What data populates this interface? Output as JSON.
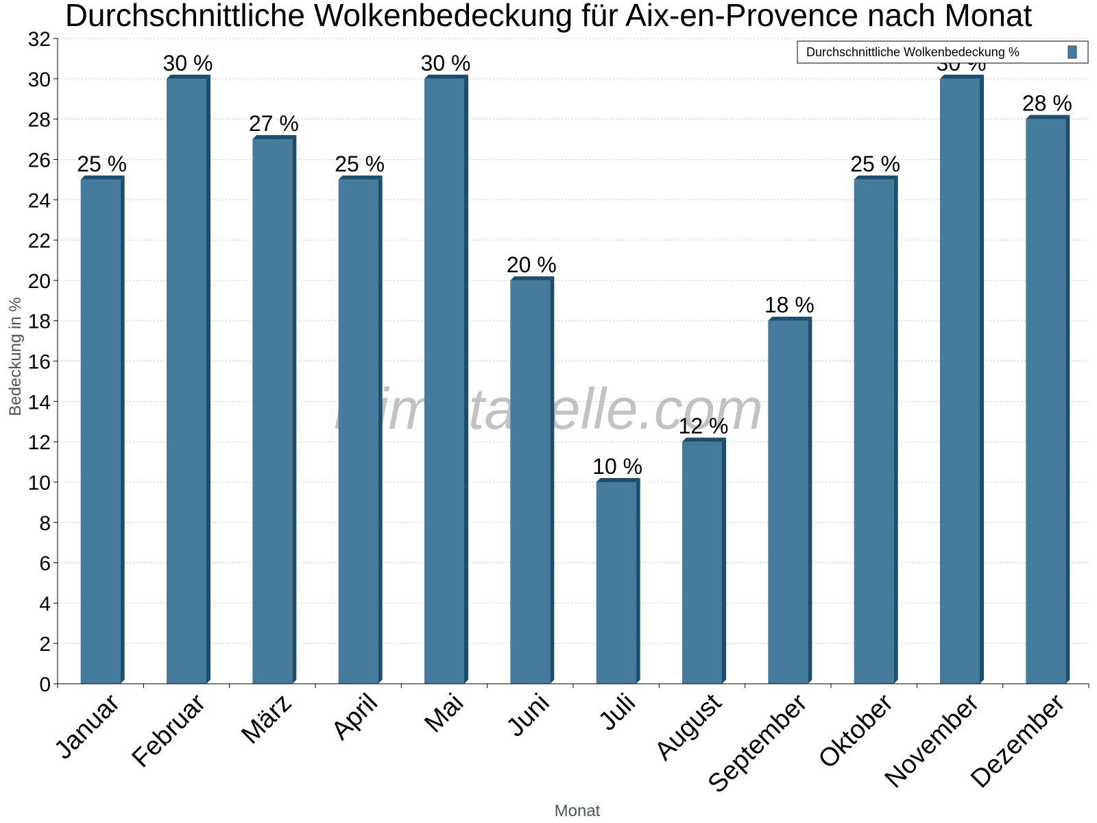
{
  "chart_data": {
    "type": "bar",
    "title": "Durchschnittliche Wolkenbedeckung für Aix-en-Provence nach Monat",
    "xlabel": "Monat",
    "ylabel": "Bedeckung in %",
    "categories": [
      "Januar",
      "Februar",
      "März",
      "April",
      "Mai",
      "Juni",
      "Juli",
      "August",
      "September",
      "Oktober",
      "November",
      "Dezember"
    ],
    "series": [
      {
        "name": "Durchschnittliche Wolkenbedeckung %",
        "values": [
          25,
          30,
          27,
          25,
          30,
          20,
          10,
          12,
          18,
          25,
          30,
          28
        ],
        "color": "#457b9d",
        "side_color": "#1d4e6e"
      }
    ],
    "data_labels": [
      "25 %",
      "30 %",
      "27 %",
      "25 %",
      "30 %",
      "20 %",
      "10 %",
      "12 %",
      "18 %",
      "25 %",
      "30 %",
      "28 %"
    ],
    "ylim": [
      0,
      32
    ],
    "yticks": [
      0,
      2,
      4,
      6,
      8,
      10,
      12,
      14,
      16,
      18,
      20,
      22,
      24,
      26,
      28,
      30,
      32
    ],
    "grid": true,
    "legend_position": "top-right",
    "watermark": "klimatabelle.com"
  }
}
